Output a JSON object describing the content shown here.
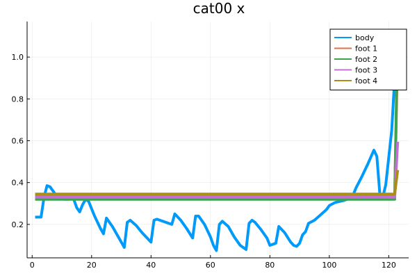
{
  "chart_data": {
    "type": "line",
    "title": "cat00 x",
    "xlabel": "",
    "ylabel": "",
    "xlim": [
      -1.7,
      126.7
    ],
    "ylim": [
      0.04,
      1.17
    ],
    "x_ticks": [
      0,
      20,
      40,
      60,
      80,
      100,
      120
    ],
    "x_tick_labels": [
      "0",
      "20",
      "40",
      "60",
      "80",
      "100",
      "120"
    ],
    "y_ticks": [
      0.2,
      0.4,
      0.6,
      0.8,
      1.0
    ],
    "y_tick_labels": [
      "0.2",
      "0.4",
      "0.6",
      "0.8",
      "1.0"
    ],
    "grid": true,
    "legend_position": "top-right",
    "series": [
      {
        "name": "body",
        "color": "#009AFA",
        "points": [
          [
            1,
            0.235
          ],
          [
            3,
            0.235
          ],
          [
            4,
            0.33
          ],
          [
            5,
            0.385
          ],
          [
            6,
            0.38
          ],
          [
            7,
            0.36
          ],
          [
            8,
            0.34
          ],
          [
            9,
            0.325
          ],
          [
            10,
            0.325
          ],
          [
            11,
            0.32
          ],
          [
            12,
            0.32
          ],
          [
            13,
            0.33
          ],
          [
            14,
            0.32
          ],
          [
            15,
            0.28
          ],
          [
            16,
            0.26
          ],
          [
            17,
            0.295
          ],
          [
            18,
            0.32
          ],
          [
            19,
            0.31
          ],
          [
            21,
            0.24
          ],
          [
            23,
            0.18
          ],
          [
            24,
            0.155
          ],
          [
            25,
            0.23
          ],
          [
            27,
            0.19
          ],
          [
            29,
            0.14
          ],
          [
            31,
            0.09
          ],
          [
            32,
            0.21
          ],
          [
            33,
            0.22
          ],
          [
            35,
            0.195
          ],
          [
            37,
            0.16
          ],
          [
            39,
            0.13
          ],
          [
            40,
            0.115
          ],
          [
            41,
            0.22
          ],
          [
            42,
            0.225
          ],
          [
            44,
            0.215
          ],
          [
            46,
            0.205
          ],
          [
            47,
            0.2
          ],
          [
            48,
            0.25
          ],
          [
            50,
            0.22
          ],
          [
            52,
            0.18
          ],
          [
            54,
            0.135
          ],
          [
            55,
            0.24
          ],
          [
            56,
            0.24
          ],
          [
            58,
            0.2
          ],
          [
            60,
            0.14
          ],
          [
            61,
            0.1
          ],
          [
            62,
            0.075
          ],
          [
            63,
            0.2
          ],
          [
            64,
            0.215
          ],
          [
            66,
            0.19
          ],
          [
            68,
            0.14
          ],
          [
            70,
            0.1
          ],
          [
            72,
            0.08
          ],
          [
            73,
            0.205
          ],
          [
            74,
            0.22
          ],
          [
            75,
            0.21
          ],
          [
            77,
            0.175
          ],
          [
            79,
            0.135
          ],
          [
            80,
            0.1
          ],
          [
            82,
            0.11
          ],
          [
            83,
            0.19
          ],
          [
            85,
            0.16
          ],
          [
            87,
            0.115
          ],
          [
            88,
            0.1
          ],
          [
            89,
            0.095
          ],
          [
            90,
            0.11
          ],
          [
            91,
            0.15
          ],
          [
            92,
            0.165
          ],
          [
            93,
            0.205
          ],
          [
            95,
            0.22
          ],
          [
            97,
            0.245
          ],
          [
            99,
            0.27
          ],
          [
            100,
            0.29
          ],
          [
            102,
            0.305
          ],
          [
            105,
            0.315
          ],
          [
            107,
            0.325
          ],
          [
            108,
            0.34
          ],
          [
            109,
            0.375
          ],
          [
            111,
            0.43
          ],
          [
            113,
            0.49
          ],
          [
            115,
            0.555
          ],
          [
            116,
            0.525
          ],
          [
            117,
            0.345
          ],
          [
            118,
            0.33
          ],
          [
            119,
            0.39
          ],
          [
            120,
            0.52
          ],
          [
            121,
            0.65
          ],
          [
            122,
            0.9
          ],
          [
            123,
            1.02
          ]
        ]
      },
      {
        "name": "foot 1",
        "color": "#E26F46",
        "points": [
          [
            1,
            0.335
          ],
          [
            122,
            0.335
          ],
          [
            123,
            1.03
          ]
        ]
      },
      {
        "name": "foot 2",
        "color": "#3DA44E",
        "points": [
          [
            1,
            0.32
          ],
          [
            122,
            0.32
          ],
          [
            123,
            1.135
          ]
        ]
      },
      {
        "name": "foot 3",
        "color": "#C271D2",
        "points": [
          [
            1,
            0.33
          ],
          [
            122,
            0.33
          ],
          [
            123,
            0.595
          ]
        ]
      },
      {
        "name": "foot 4",
        "color": "#AC8D18",
        "points": [
          [
            1,
            0.345
          ],
          [
            122,
            0.345
          ],
          [
            123,
            0.46
          ]
        ]
      }
    ]
  }
}
